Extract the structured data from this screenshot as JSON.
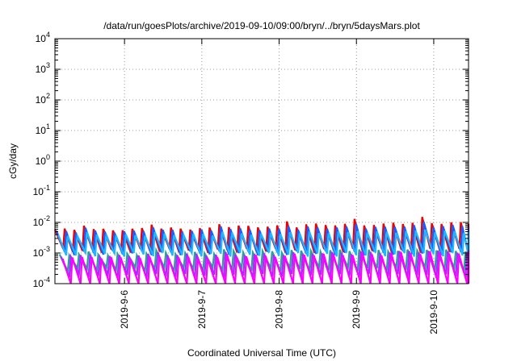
{
  "chart_data": {
    "type": "line",
    "title": "/data/run/goesPlots/archive/2019-09-10/09:00/bryn/../bryn/5daysMars.plot",
    "xlabel": "Coordinated Universal Time (UTC)",
    "ylabel": "cGy/day",
    "x_ticks": [
      "2019-9-6",
      "2019-9-7",
      "2019-9-8",
      "2019-9-9",
      "2019-9-10"
    ],
    "x_range_days": [
      5.1,
      10.45
    ],
    "y_scale": "log",
    "ylim": [
      0.0001,
      10000
    ],
    "y_tick_bases": [
      "10",
      "10",
      "10",
      "10",
      "10",
      "10",
      "10",
      "10",
      "10"
    ],
    "y_tick_exps": [
      "-4",
      "-3",
      "-2",
      "-1",
      "0",
      "1",
      "2",
      "3",
      "4"
    ],
    "grid": true,
    "cycle_period_hours": 3,
    "series": [
      {
        "color": "#ee0000",
        "baseline": [
          0.0058,
          0.0063,
          0.0074,
          0.0085,
          0.0096
        ],
        "peak_boost": 1.45,
        "trough": 0.0012
      },
      {
        "color": "#1a5cff",
        "baseline": [
          0.005,
          0.0054,
          0.006,
          0.0068,
          0.0076
        ],
        "peak_boost": 1.35,
        "trough": 0.001
      },
      {
        "color": "#1fb6ff",
        "baseline": [
          0.0038,
          0.004,
          0.0043,
          0.0047,
          0.005
        ],
        "peak_boost": 1.2,
        "trough": 0.0009
      },
      {
        "color": "#2aa198",
        "baseline": [
          0.0009,
          0.001,
          0.0011,
          0.0012,
          0.0012
        ],
        "peak_boost": 1.15,
        "trough": 0.0003
      },
      {
        "color": "#9b30ff",
        "baseline": [
          0.0008,
          0.0009,
          0.0009,
          0.001,
          0.0011
        ],
        "peak_boost": 1.1,
        "trough": 0.00018
      },
      {
        "color": "#ff00ff",
        "baseline": [
          0.0007,
          0.0007,
          0.0008,
          0.0009,
          0.001
        ],
        "peak_boost": 1.1,
        "trough": 9e-05
      }
    ]
  }
}
